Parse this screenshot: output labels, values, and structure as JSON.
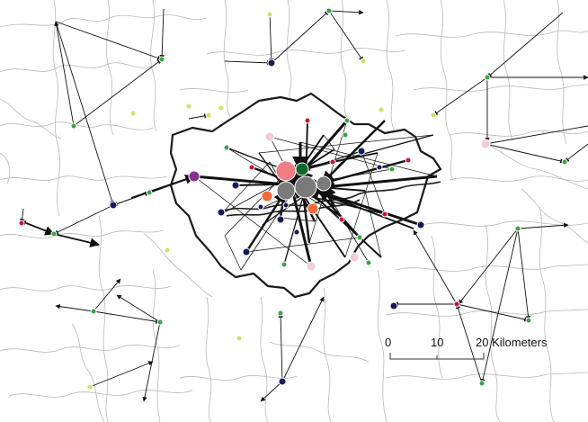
{
  "map": {
    "type": "flow map",
    "colors": {
      "navy": "#141a5a",
      "green": "#3aa346",
      "lime": "#c9e36b",
      "red": "#cc1133",
      "pink": "#f4cbd6",
      "salmon": "#f07c84",
      "orange": "#f26a3a",
      "dark_green": "#0c6a2a",
      "gray": "#7a7a7a",
      "purple": "#86308d"
    },
    "scale_bar": {
      "labels": [
        "0",
        "10",
        "20 Kilometers"
      ]
    }
  }
}
